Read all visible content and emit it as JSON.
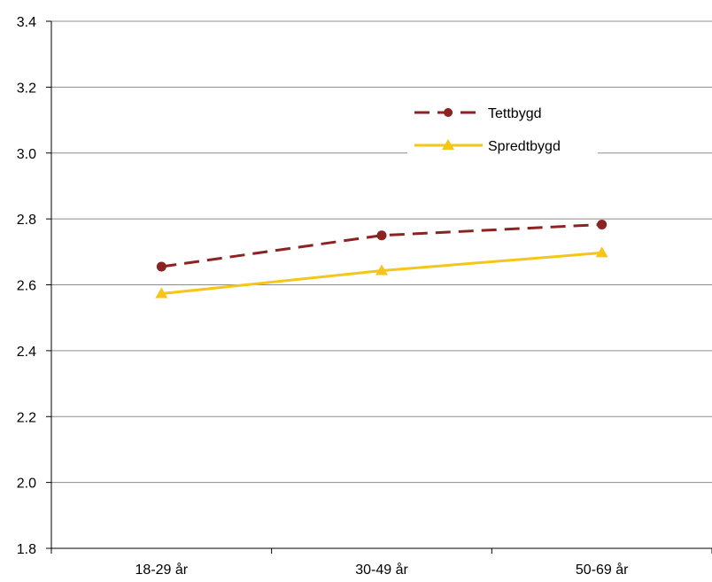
{
  "chart_data": {
    "type": "line",
    "title": "",
    "xlabel": "",
    "ylabel": "",
    "categories": [
      "18-29 år",
      "30-49 år",
      "50-69 år"
    ],
    "ylim": [
      1.8,
      3.4
    ],
    "yticks": [
      "1.8",
      "2.0",
      "2.2",
      "2.4",
      "2.6",
      "2.8",
      "3.0",
      "3.2",
      "3.4"
    ],
    "grid": "horizontal",
    "legend_position": "top-right",
    "series": [
      {
        "name": "Tettbygd",
        "values": [
          2.655,
          2.75,
          2.783
        ],
        "color": "#8B2323",
        "line_style": "dashed",
        "marker": "circle"
      },
      {
        "name": "Spredtbygd",
        "values": [
          2.573,
          2.643,
          2.697
        ],
        "color": "#F5C518",
        "line_style": "solid",
        "marker": "triangle"
      }
    ]
  }
}
